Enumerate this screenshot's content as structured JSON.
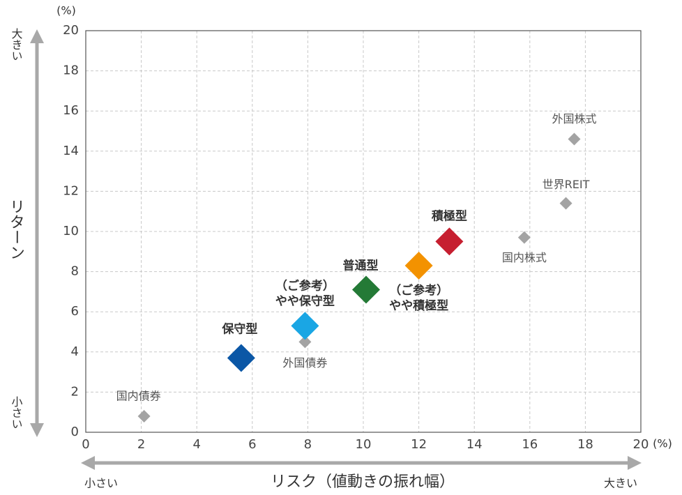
{
  "chart_data": {
    "type": "scatter",
    "y_unit": "(%)",
    "x_unit": "(%)",
    "ylabel": "リターン",
    "y_high": "大きい",
    "y_low": "小さい",
    "xlabel": "リスク（値動きの振れ幅）",
    "x_low": "小さい",
    "x_high": "大きい",
    "xlim": [
      0,
      20
    ],
    "ylim": [
      0,
      20
    ],
    "xticks": [
      0,
      2,
      4,
      6,
      8,
      10,
      12,
      14,
      16,
      18,
      20
    ],
    "yticks": [
      0,
      2,
      4,
      6,
      8,
      10,
      12,
      14,
      16,
      18,
      20
    ],
    "grid": true,
    "series": [
      {
        "color": "#a3a3a3",
        "points": [
          {
            "label": [
              "国内債券"
            ],
            "x": 2.1,
            "y": 0.8
          },
          {
            "label": [
              "外国債券"
            ],
            "x": 7.9,
            "y": 4.5
          },
          {
            "label": [
              "国内株式"
            ],
            "x": 15.8,
            "y": 9.7
          },
          {
            "label": [
              "世界REIT"
            ],
            "x": 17.3,
            "y": 11.4
          },
          {
            "label": [
              "外国株式"
            ],
            "x": 17.6,
            "y": 14.6
          }
        ]
      },
      {
        "points": [
          {
            "label": [
              "保守型"
            ],
            "x": 5.6,
            "y": 3.7,
            "color": "#0b57a6"
          },
          {
            "label": [
              "（ご参考）",
              "やや保守型"
            ],
            "x": 7.9,
            "y": 5.3,
            "color": "#1aa6e4"
          },
          {
            "label": [
              "普通型"
            ],
            "x": 10.1,
            "y": 7.1,
            "color": "#247a36"
          },
          {
            "label": [
              "（ご参考）",
              "やや積極型"
            ],
            "x": 12.0,
            "y": 8.3,
            "color": "#f39200"
          },
          {
            "label": [
              "積極型"
            ],
            "x": 13.1,
            "y": 9.5,
            "color": "#c61f30"
          }
        ]
      }
    ]
  }
}
